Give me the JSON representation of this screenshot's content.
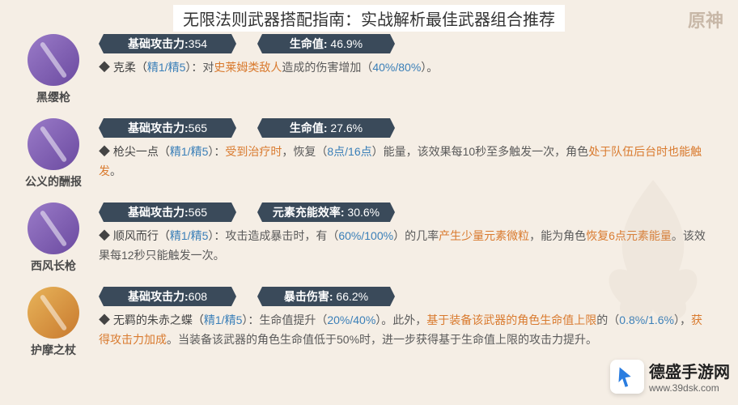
{
  "title": "无限法则武器搭配指南：实战解析最佳武器组合推荐",
  "logo": "原神",
  "stat_labels": {
    "atk": "基础攻击力:",
    "substat_hp": "生命值:",
    "substat_er": "元素充能效率:",
    "substat_cd": "暴击伤害:"
  },
  "colors": {
    "badge_bg": "#3a4a5a",
    "hl_orange": "#d97a2e",
    "hl_blue": "#3a7fb8",
    "icon_purple_a": "#9a7bc8",
    "icon_purple_b": "#6b4aa0",
    "icon_gold_a": "#e8b45a",
    "icon_gold_b": "#c8792e"
  },
  "weapons": [
    {
      "name": "黑缨枪",
      "icon_bg": "linear-gradient(135deg,#9a7bc8,#6b4aa0)",
      "atk": "354",
      "substat_label": "生命值:",
      "substat_val": "46.9%",
      "effect_name": "克柔",
      "refine": "精1/精5",
      "effect_parts": [
        {
          "t": "：对",
          "c": ""
        },
        {
          "t": "史莱姆类敌人",
          "c": "hl-orange"
        },
        {
          "t": "造成的伤害增加（",
          "c": ""
        },
        {
          "t": "40%/80%",
          "c": "hl-blue"
        },
        {
          "t": "）。",
          "c": ""
        }
      ]
    },
    {
      "name": "公义的酬报",
      "icon_bg": "linear-gradient(135deg,#9a7bc8,#6b4aa0)",
      "atk": "565",
      "substat_label": "生命值:",
      "substat_val": "27.6%",
      "effect_name": "枪尖一点",
      "refine": "精1/精5",
      "effect_parts": [
        {
          "t": "：",
          "c": ""
        },
        {
          "t": "受到治疗时",
          "c": "hl-orange"
        },
        {
          "t": "，恢复（",
          "c": ""
        },
        {
          "t": "8点/16点",
          "c": "hl-blue"
        },
        {
          "t": "）能量，该效果每10秒至多触发一次，角色",
          "c": ""
        },
        {
          "t": "处于队伍后台时也能触发",
          "c": "hl-orange"
        },
        {
          "t": "。",
          "c": ""
        }
      ]
    },
    {
      "name": "西风长枪",
      "icon_bg": "linear-gradient(135deg,#9a7bc8,#6b4aa0)",
      "atk": "565",
      "substat_label": "元素充能效率:",
      "substat_val": "30.6%",
      "effect_name": "顺风而行",
      "refine": "精1/精5",
      "effect_parts": [
        {
          "t": "：攻击造成暴击时，有（",
          "c": ""
        },
        {
          "t": "60%/100%",
          "c": "hl-blue"
        },
        {
          "t": "）的几率",
          "c": ""
        },
        {
          "t": "产生少量元素微粒",
          "c": "hl-orange"
        },
        {
          "t": "，能为角色",
          "c": ""
        },
        {
          "t": "恢复6点元素能量",
          "c": "hl-orange"
        },
        {
          "t": "。该效果每12秒只能触发一次。",
          "c": ""
        }
      ]
    },
    {
      "name": "护摩之杖",
      "icon_bg": "linear-gradient(135deg,#e8b45a,#c8792e)",
      "atk": "608",
      "substat_label": "暴击伤害:",
      "substat_val": "66.2%",
      "effect_name": "无羁的朱赤之蝶",
      "refine": "精1/精5",
      "effect_parts": [
        {
          "t": "：生命值提升（",
          "c": ""
        },
        {
          "t": "20%/40%",
          "c": "hl-blue"
        },
        {
          "t": "）。此外，",
          "c": ""
        },
        {
          "t": "基于装备该武器的角色生命值上限",
          "c": "hl-orange"
        },
        {
          "t": "的（",
          "c": ""
        },
        {
          "t": "0.8%/1.6%",
          "c": "hl-blue"
        },
        {
          "t": "），",
          "c": ""
        },
        {
          "t": "获得攻击力加成",
          "c": "hl-orange"
        },
        {
          "t": "。当装备该武器的角色生命值低于50%时，进一步获得基于生命值上限的攻击力提升。",
          "c": ""
        }
      ]
    }
  ],
  "watermark": {
    "title": "德盛手游网",
    "url": "www.39dsk.com"
  }
}
